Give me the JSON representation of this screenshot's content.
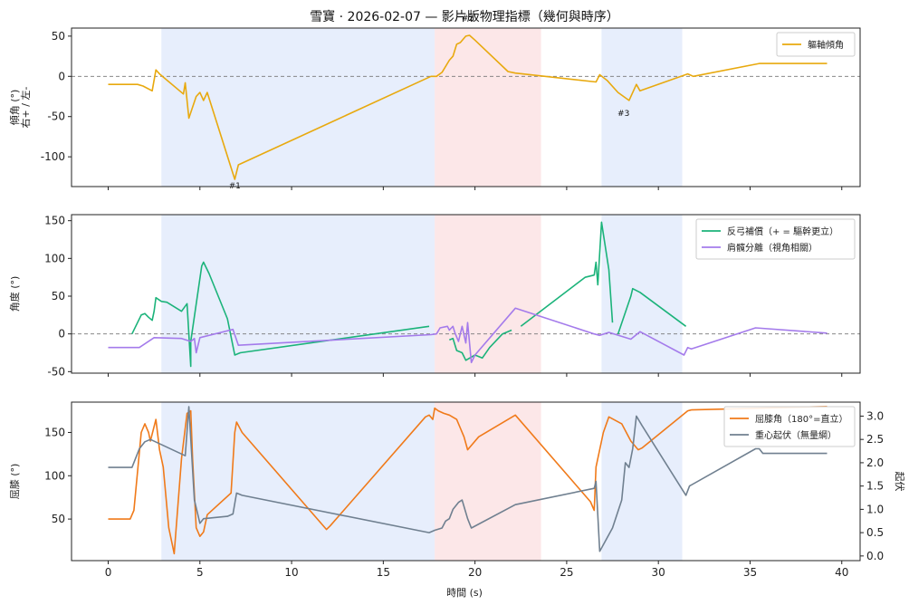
{
  "title": "雪寶 · 2026-02-07 — 影片版物理指標（幾何與時序）",
  "xlabel": "時間 (s)",
  "colors": {
    "tilt": "#E8A90E",
    "counter": "#1BB37A",
    "separation": "#A47BEB",
    "knee": "#F07A1A",
    "com": "#708090",
    "band_blue": "#dfe8fb",
    "band_red": "#fbdfe0"
  },
  "chart_data": [
    {
      "type": "line",
      "panel": "top",
      "xlim": [
        -2,
        41
      ],
      "ylim": [
        -137,
        60
      ],
      "yticks": [
        50,
        0,
        -50,
        -100
      ],
      "ylabel_lines": [
        "傾角 (°)",
        "右+ / 左-"
      ],
      "shaded": [
        {
          "from": 2.9,
          "to": 17.8,
          "color": "blue"
        },
        {
          "from": 17.8,
          "to": 23.6,
          "color": "red"
        },
        {
          "from": 26.9,
          "to": 31.3,
          "color": "blue"
        }
      ],
      "hline": 0,
      "legend": [
        "軀軸傾角"
      ],
      "annotations": [
        {
          "text": "#1",
          "x": 6.9,
          "y": -128
        },
        {
          "text": "#2",
          "x": 19.6,
          "y": 51
        },
        {
          "text": "#3",
          "x": 28.1,
          "y": -38
        }
      ],
      "series": [
        {
          "name": "軀軸傾角",
          "color_key": "tilt",
          "segments": [
            [
              [
                0,
                -10
              ],
              [
                1.6,
                -10
              ],
              [
                1.9,
                -12
              ],
              [
                2.4,
                -18
              ],
              [
                2.6,
                8
              ],
              [
                2.8,
                3
              ],
              [
                4.1,
                -22
              ],
              [
                4.2,
                -8
              ],
              [
                4.4,
                -52
              ],
              [
                4.8,
                -25
              ],
              [
                5.0,
                -20
              ],
              [
                5.2,
                -30
              ],
              [
                5.4,
                -20
              ],
              [
                6.9,
                -128
              ],
              [
                7.1,
                -110
              ],
              [
                17.6,
                0
              ],
              [
                17.9,
                0
              ],
              [
                18.2,
                5
              ],
              [
                18.6,
                20
              ],
              [
                18.8,
                25
              ],
              [
                19.0,
                40
              ],
              [
                19.2,
                42
              ],
              [
                19.5,
                50
              ],
              [
                19.7,
                51
              ],
              [
                20.0,
                45
              ],
              [
                21.8,
                6
              ],
              [
                22.2,
                4
              ],
              [
                26.6,
                -7
              ],
              [
                26.8,
                2
              ],
              [
                27.2,
                -5
              ],
              [
                27.8,
                -20
              ],
              [
                28.4,
                -30
              ],
              [
                28.8,
                -10
              ],
              [
                29.0,
                -18
              ],
              [
                31.6,
                3
              ],
              [
                31.9,
                0
              ],
              [
                35.5,
                16
              ],
              [
                39.2,
                16
              ]
            ]
          ]
        }
      ]
    },
    {
      "type": "line",
      "panel": "middle",
      "xlim": [
        -2,
        41
      ],
      "ylim": [
        -52,
        158
      ],
      "yticks": [
        150,
        100,
        50,
        0,
        -50
      ],
      "ylabel_lines": [
        "角度 (°)"
      ],
      "shaded": [
        {
          "from": 2.9,
          "to": 17.8,
          "color": "blue"
        },
        {
          "from": 17.8,
          "to": 23.6,
          "color": "red"
        },
        {
          "from": 26.9,
          "to": 31.3,
          "color": "blue"
        }
      ],
      "hline": 0,
      "legend": [
        "反弓補償（+ = 驅幹更立）",
        "肩髖分離（視角相關）"
      ],
      "series": [
        {
          "name": "反弓補償（+ = 驅幹更立）",
          "color_key": "counter",
          "segments": [
            [
              [
                1.3,
                0
              ],
              [
                1.6,
                15
              ],
              [
                1.8,
                25
              ],
              [
                2.0,
                27
              ],
              [
                2.2,
                22
              ],
              [
                2.4,
                18
              ],
              [
                2.5,
                30
              ],
              [
                2.6,
                48
              ],
              [
                2.9,
                43
              ],
              [
                3.2,
                42
              ],
              [
                4.0,
                30
              ],
              [
                4.3,
                40
              ],
              [
                4.5,
                -43
              ],
              [
                4.5,
                -10
              ],
              [
                5.1,
                90
              ],
              [
                5.2,
                95
              ],
              [
                5.5,
                80
              ],
              [
                6.5,
                20
              ],
              [
                6.9,
                -28
              ],
              [
                7.2,
                -25
              ],
              [
                17.5,
                10
              ]
            ],
            [
              [
                18.6,
                -8
              ],
              [
                18.8,
                -6
              ],
              [
                19.0,
                -22
              ],
              [
                19.3,
                -25
              ],
              [
                19.5,
                -35
              ],
              [
                20.0,
                -28
              ],
              [
                20.4,
                -32
              ],
              [
                20.8,
                -18
              ],
              [
                21.5,
                0
              ],
              [
                22.0,
                5
              ]
            ],
            [
              [
                22.5,
                10
              ],
              [
                26.0,
                75
              ],
              [
                26.5,
                78
              ],
              [
                26.6,
                95
              ],
              [
                26.7,
                65
              ],
              [
                26.9,
                148
              ],
              [
                27.3,
                85
              ],
              [
                27.5,
                15
              ]
            ],
            [
              [
                27.8,
                0
              ],
              [
                28.5,
                50
              ],
              [
                28.6,
                60
              ],
              [
                29.0,
                55
              ],
              [
                31.5,
                10
              ]
            ]
          ]
        },
        {
          "name": "肩髖分離（視角相關）",
          "color_key": "separation",
          "segments": [
            [
              [
                0,
                -18
              ],
              [
                1.7,
                -18
              ],
              [
                2.5,
                -5
              ],
              [
                4.0,
                -6
              ],
              [
                4.5,
                -10
              ],
              [
                4.7,
                -6
              ],
              [
                4.8,
                -25
              ],
              [
                5.0,
                -5
              ],
              [
                6.8,
                6
              ],
              [
                7.1,
                -15
              ],
              [
                17.6,
                -1
              ],
              [
                17.9,
                0
              ],
              [
                18.1,
                8
              ],
              [
                18.5,
                10
              ],
              [
                18.6,
                5
              ],
              [
                18.8,
                10
              ],
              [
                18.9,
                2
              ],
              [
                19.1,
                -10
              ],
              [
                19.3,
                10
              ],
              [
                19.5,
                -12
              ],
              [
                19.6,
                15
              ],
              [
                19.8,
                -38
              ],
              [
                20.0,
                -28
              ],
              [
                22.2,
                34
              ],
              [
                26.5,
                0
              ],
              [
                26.8,
                -2
              ],
              [
                27.3,
                2
              ],
              [
                28.5,
                -7
              ],
              [
                29.0,
                3
              ],
              [
                31.4,
                -28
              ],
              [
                31.6,
                -18
              ],
              [
                31.8,
                -20
              ],
              [
                35.3,
                8
              ],
              [
                39.2,
                1
              ]
            ]
          ]
        }
      ]
    },
    {
      "type": "line",
      "panel": "bottom",
      "xlim": [
        -2,
        41
      ],
      "ylim": [
        2,
        185
      ],
      "yticks": [
        150,
        100,
        50
      ],
      "ylabel_lines": [
        "屈膝 (°)"
      ],
      "y2lim": [
        -0.1,
        3.3
      ],
      "y2ticks": [
        3.0,
        2.5,
        2.0,
        1.5,
        1.0,
        0.5,
        0.0
      ],
      "y2ticklabels": [
        "3.0",
        "2.5",
        "2.0",
        "1.5",
        "1.0",
        "0.5",
        "0.0"
      ],
      "y2label": "起伏",
      "shaded": [
        {
          "from": 2.9,
          "to": 17.8,
          "color": "blue"
        },
        {
          "from": 17.8,
          "to": 23.6,
          "color": "red"
        },
        {
          "from": 26.9,
          "to": 31.3,
          "color": "blue"
        }
      ],
      "legend": [
        "屈膝角（180°=直立）",
        "重心起伏（無量綱）"
      ],
      "series": [
        {
          "name": "屈膝角（180°=直立）",
          "color_key": "knee",
          "axis": "left",
          "segments": [
            [
              [
                0,
                50
              ],
              [
                1.2,
                50
              ],
              [
                1.4,
                60
              ],
              [
                1.8,
                150
              ],
              [
                2.0,
                160
              ],
              [
                2.2,
                150
              ],
              [
                2.3,
                140
              ],
              [
                2.6,
                165
              ],
              [
                2.8,
                130
              ],
              [
                3.0,
                110
              ],
              [
                3.3,
                40
              ],
              [
                3.6,
                10
              ],
              [
                4.0,
                120
              ],
              [
                4.3,
                172
              ],
              [
                4.5,
                175
              ],
              [
                4.6,
                120
              ],
              [
                4.8,
                40
              ],
              [
                5.0,
                30
              ],
              [
                5.2,
                35
              ],
              [
                5.4,
                55
              ],
              [
                6.7,
                80
              ],
              [
                6.9,
                150
              ],
              [
                7.0,
                162
              ],
              [
                7.3,
                150
              ],
              [
                11.9,
                38
              ],
              [
                12.1,
                42
              ],
              [
                17.3,
                168
              ],
              [
                17.5,
                170
              ],
              [
                17.7,
                165
              ],
              [
                17.8,
                178
              ],
              [
                18.0,
                175
              ],
              [
                18.3,
                172
              ],
              [
                18.6,
                170
              ],
              [
                19.0,
                165
              ],
              [
                19.4,
                145
              ],
              [
                19.6,
                130
              ],
              [
                20.2,
                145
              ],
              [
                22.2,
                170
              ],
              [
                26.3,
                70
              ],
              [
                26.5,
                60
              ],
              [
                26.6,
                110
              ],
              [
                27.0,
                150
              ],
              [
                27.3,
                168
              ],
              [
                28.0,
                160
              ],
              [
                28.5,
                140
              ],
              [
                28.9,
                130
              ],
              [
                29.1,
                132
              ],
              [
                31.6,
                175
              ],
              [
                31.8,
                176
              ],
              [
                39.2,
                180
              ]
            ]
          ]
        },
        {
          "name": "重心起伏（無量綱）",
          "color_key": "com",
          "axis": "right",
          "segments": [
            [
              [
                0,
                1.9
              ],
              [
                1.3,
                1.9
              ],
              [
                1.7,
                2.3
              ],
              [
                2.0,
                2.45
              ],
              [
                2.3,
                2.5
              ],
              [
                4.2,
                2.15
              ],
              [
                4.4,
                3.2
              ],
              [
                4.7,
                1.2
              ],
              [
                5.0,
                0.7
              ],
              [
                5.2,
                0.8
              ],
              [
                6.5,
                0.85
              ],
              [
                6.8,
                0.9
              ],
              [
                7.0,
                1.35
              ],
              [
                7.3,
                1.3
              ],
              [
                17.5,
                0.5
              ],
              [
                17.8,
                0.55
              ],
              [
                18.2,
                0.6
              ],
              [
                18.4,
                0.75
              ],
              [
                18.6,
                0.8
              ],
              [
                18.8,
                1.0
              ],
              [
                19.1,
                1.15
              ],
              [
                19.3,
                1.2
              ],
              [
                19.6,
                0.8
              ],
              [
                19.8,
                0.6
              ],
              [
                22.2,
                1.1
              ],
              [
                26.5,
                1.45
              ],
              [
                26.6,
                1.6
              ],
              [
                26.8,
                0.1
              ],
              [
                27.5,
                0.6
              ],
              [
                28.0,
                1.2
              ],
              [
                28.2,
                2.0
              ],
              [
                28.4,
                1.9
              ],
              [
                28.6,
                2.3
              ],
              [
                28.8,
                3.0
              ],
              [
                29.1,
                2.8
              ],
              [
                31.5,
                1.3
              ],
              [
                31.7,
                1.5
              ],
              [
                35.3,
                2.3
              ],
              [
                35.5,
                2.3
              ],
              [
                35.7,
                2.2
              ],
              [
                39.2,
                2.2
              ]
            ]
          ]
        }
      ]
    }
  ]
}
